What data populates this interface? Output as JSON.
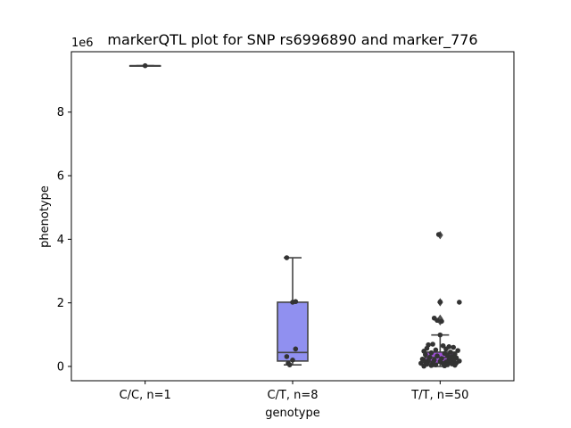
{
  "chart_data": {
    "type": "box",
    "title": "markerQTL plot for SNP rs6996890 and marker_776",
    "xlabel": "genotype",
    "ylabel": "phenotype",
    "y_multiplier_label": "1e6",
    "ylim": [
      -0.45,
      9.9
    ],
    "y_ticks": [
      0,
      2,
      4,
      6,
      8
    ],
    "y_tick_labels": [
      "0",
      "2",
      "4",
      "6",
      "8"
    ],
    "categories": [
      "C/C, n=1",
      "C/T, n=8",
      "T/T, n=50"
    ],
    "boxes": [
      {
        "category": "C/C, n=1",
        "color": "#9090f0",
        "whisker_low": 9.46,
        "q1": 9.46,
        "median": 9.46,
        "q3": 9.46,
        "whisker_high": 9.46,
        "outliers": []
      },
      {
        "category": "C/T, n=8",
        "color": "#9090f0",
        "whisker_low": 0.05,
        "q1": 0.17,
        "median": 0.44,
        "q3": 2.02,
        "whisker_high": 3.42,
        "outliers": []
      },
      {
        "category": "T/T, n=50",
        "color": "#a050d8",
        "whisker_low": 0.0,
        "q1": 0.1,
        "median": 0.28,
        "q3": 0.45,
        "whisker_high": 0.99,
        "outliers": [
          1.42,
          1.5,
          2.02,
          4.13
        ]
      }
    ],
    "points": [
      {
        "category": "C/C, n=1",
        "values": [
          9.46
        ],
        "jitter": [
          0.0
        ]
      },
      {
        "category": "C/T, n=8",
        "values": [
          3.42,
          2.02,
          2.04,
          0.55,
          0.31,
          0.2,
          0.1,
          0.05
        ],
        "jitter": [
          -0.04,
          0.0,
          0.02,
          0.02,
          -0.04,
          0.0,
          -0.03,
          -0.02
        ]
      },
      {
        "category": "T/T, n=50",
        "values": [
          4.15,
          2.03,
          2.02,
          1.52,
          1.45,
          1.42,
          0.99,
          0.7,
          0.68,
          0.65,
          0.62,
          0.6,
          0.57,
          0.55,
          0.52,
          0.5,
          0.48,
          0.45,
          0.43,
          0.41,
          0.39,
          0.37,
          0.35,
          0.33,
          0.31,
          0.29,
          0.27,
          0.25,
          0.23,
          0.21,
          0.2,
          0.19,
          0.18,
          0.17,
          0.16,
          0.15,
          0.14,
          0.13,
          0.12,
          0.11,
          0.1,
          0.09,
          0.08,
          0.07,
          0.06,
          0.05,
          0.04,
          0.03,
          0.02,
          0.01
        ],
        "jitter": [
          -0.01,
          0.0,
          0.13,
          -0.04,
          -0.02,
          0.01,
          0.0,
          -0.05,
          -0.08,
          0.02,
          0.06,
          0.09,
          -0.09,
          0.04,
          -0.03,
          0.12,
          -0.11,
          0.07,
          -0.06,
          0.03,
          0.1,
          -0.1,
          0.05,
          -0.02,
          0.08,
          -0.07,
          0.11,
          0.01,
          -0.12,
          0.06,
          -0.04,
          0.09,
          -0.08,
          0.13,
          0.0,
          -0.1,
          0.04,
          0.07,
          -0.05,
          0.11,
          -0.13,
          0.02,
          0.08,
          -0.09,
          0.05,
          -0.03,
          0.1,
          -0.06,
          0.03,
          -0.11
        ]
      }
    ],
    "point_color": "#333333",
    "outlier_marker": "diamond",
    "grid": false,
    "legend": "none"
  }
}
